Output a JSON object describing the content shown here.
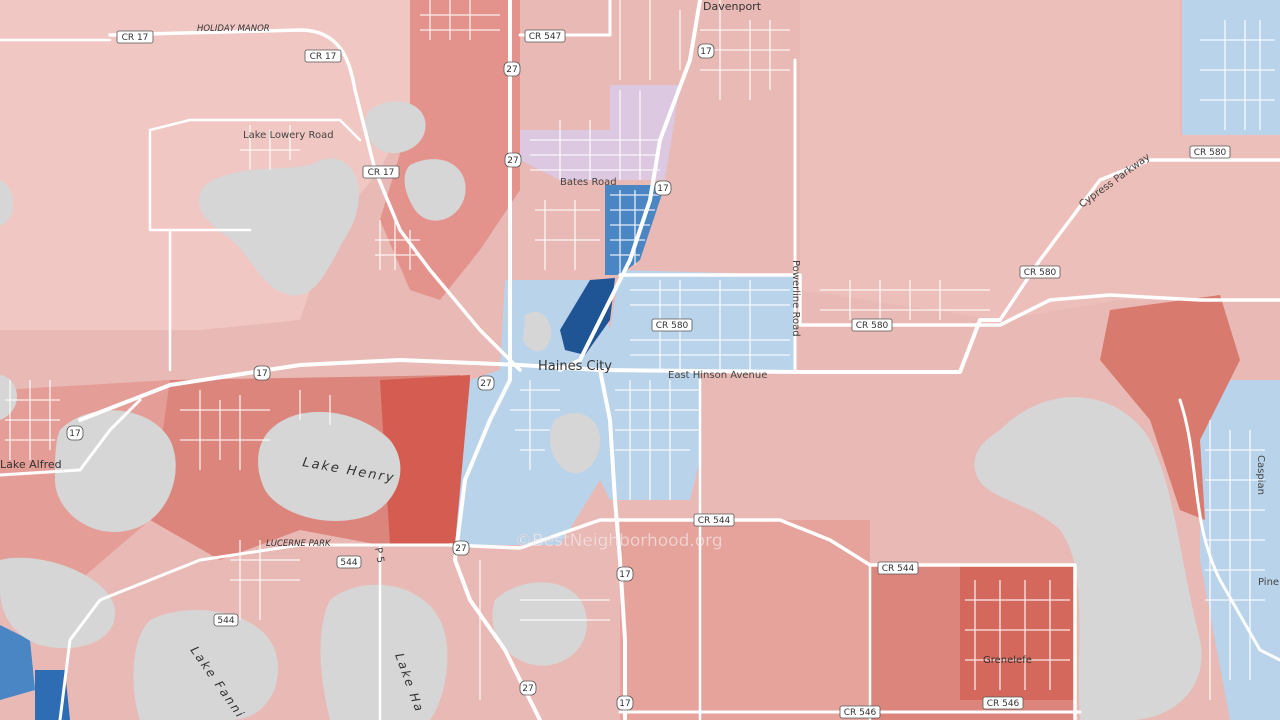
{
  "watermark": "©BestNeighborhood.org",
  "colors": {
    "base": "#e9b9b5",
    "light_red": "#f0c7c3",
    "mid_red": "#e3938c",
    "dark_red": "#d45c50",
    "light_blue": "#b9d3ea",
    "mid_blue": "#4a86c4",
    "dark_blue": "#1f5595",
    "purple": "#dcc8e0",
    "water": "#d6d6d6"
  },
  "places": {
    "davenport": "Davenport",
    "holiday_manor": "HOLIDAY MANOR",
    "haines_city": "Haines City",
    "lake_alfred": "Lake Alfred",
    "lucerne_park": "LUCERNE PARK",
    "grenelefe": "Grenelefe",
    "lake_henry": "Lake Henry",
    "lake_fannie": "Lake Fanni",
    "lake_hamilton": "Lake Ha"
  },
  "roads": {
    "lake_lowery": "Lake Lowery Road",
    "bates": "Bates Road",
    "powerline": "Powerline Road",
    "east_hinson": "East Hinson Avenue",
    "cypress": "Cypress Parkway",
    "caspian": "Caspian",
    "pine": "Pine"
  },
  "shields": {
    "cr17a": "CR 17",
    "cr17b": "CR 17",
    "cr17c": "CR 17",
    "cr547": "CR 547",
    "us27a": "27",
    "us27b": "27",
    "us27c": "27",
    "us27d": "27",
    "us27e": "27",
    "us17a": "17",
    "us17b": "17",
    "us17c": "17",
    "us17d": "17",
    "us17e": "17",
    "us17f": "17",
    "cr580a": "CR 580",
    "cr580b": "CR 580",
    "cr580c": "CR 580",
    "cr580d": "CR 580",
    "cr544a": "CR 544",
    "cr544b": "CR 544",
    "sr544a": "544",
    "sr544b": "544",
    "cr546a": "CR 546",
    "cr546b": "CR 546",
    "p5": "P 5"
  }
}
